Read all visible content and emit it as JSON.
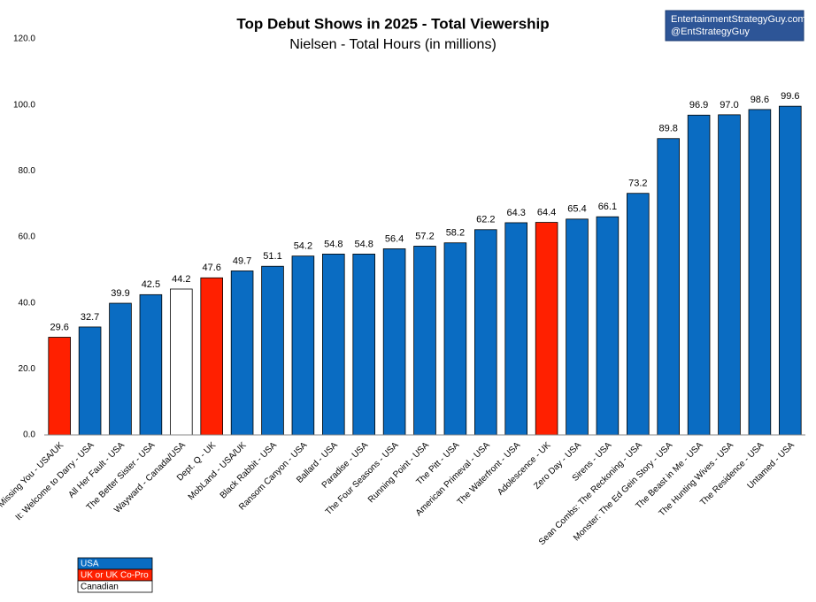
{
  "chart_data": {
    "type": "bar",
    "title": "Top Debut Shows in 2025 - Total Viewership",
    "subtitle": "Nielsen - Total Hours (in millions)",
    "annotations": [
      "EntertainmentStrategyGuy.com",
      "@EntStrategyGuy"
    ],
    "categories": [
      "Missing You - USA/UK",
      "It: Welcome to Darry - USA",
      "All Her Fault - USA",
      "The Better Sister - USA",
      "Wayward - Canada/USA",
      "Dept. Q - UK",
      "MobLand - USA/UK",
      "Black Rabbit - USA",
      "Ransom Canyon - USA",
      "Ballard - USA",
      "Paradise - USA",
      "The Four Seasons - USA",
      "Running Point - USA",
      "The Pitt - USA",
      "American Primeval - USA",
      "The Waterfront - USA",
      "Adolescence - UK",
      "Zero Day - USA",
      "Sirens - USA",
      "Sean Combs: The Reckoning - USA",
      "Monster: The Ed Gein Story - USA",
      "The Beast in Me - USA",
      "The Hunting Wives - USA",
      "The Residence - USA",
      "Untamed - USA"
    ],
    "values": [
      29.6,
      32.7,
      39.9,
      42.5,
      44.2,
      47.6,
      49.7,
      51.1,
      54.2,
      54.8,
      54.8,
      56.4,
      57.2,
      58.2,
      62.2,
      64.3,
      64.4,
      65.4,
      66.1,
      73.2,
      89.8,
      96.9,
      97.0,
      98.6,
      99.6
    ],
    "value_labels": [
      "29.6",
      "32.7",
      "39.9",
      "42.5",
      "44.2",
      "47.6",
      "49.7",
      "51.1",
      "54.2",
      "54.8",
      "54.8",
      "56.4",
      "57.2",
      "58.2",
      "62.2",
      "64.3",
      "64.4",
      "65.4",
      "66.1",
      "73.2",
      "89.8",
      "96.9",
      "97.0",
      "98.6",
      "99.6"
    ],
    "colors": [
      "#ff2000",
      "#0a6cc2",
      "#0a6cc2",
      "#0a6cc2",
      "#ffffff",
      "#ff2000",
      "#0a6cc2",
      "#0a6cc2",
      "#0a6cc2",
      "#0a6cc2",
      "#0a6cc2",
      "#0a6cc2",
      "#0a6cc2",
      "#0a6cc2",
      "#0a6cc2",
      "#0a6cc2",
      "#ff2000",
      "#0a6cc2",
      "#0a6cc2",
      "#0a6cc2",
      "#0a6cc2",
      "#0a6cc2",
      "#0a6cc2",
      "#0a6cc2",
      "#0a6cc2"
    ],
    "legend": [
      {
        "name": "USA",
        "color": "#0a6cc2"
      },
      {
        "name": "UK or UK Co-Pro",
        "color": "#ff2000"
      },
      {
        "name": "Canadian",
        "color": "#ffffff"
      }
    ],
    "ylim": [
      0,
      120
    ],
    "yticks": [
      {
        "value": 0,
        "label": "0.0"
      },
      {
        "value": 20,
        "label": "20.0"
      },
      {
        "value": 40,
        "label": "40.0"
      },
      {
        "value": 60,
        "label": "60.0"
      },
      {
        "value": 80,
        "label": "80.0"
      },
      {
        "value": 100,
        "label": "100.0"
      },
      {
        "value": 120,
        "label": "120.0"
      }
    ],
    "grid": false
  }
}
